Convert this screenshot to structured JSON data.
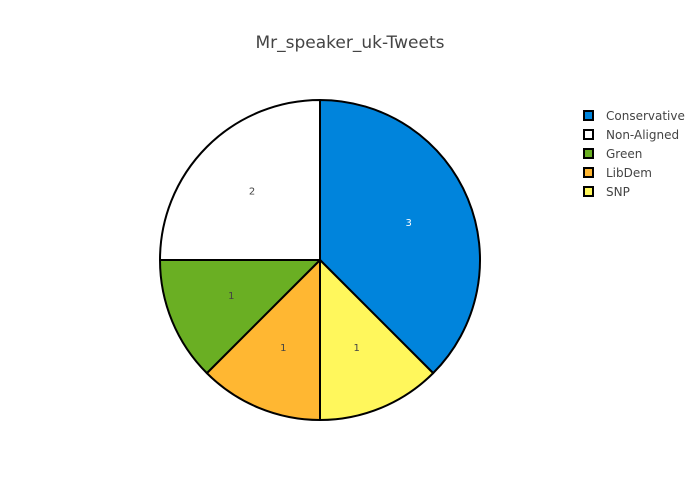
{
  "chart_data": {
    "type": "pie",
    "title": "Mr_speaker_uk-Tweets",
    "categories": [
      "Conservative",
      "SNP",
      "LibDem",
      "Green",
      "Non-Aligned"
    ],
    "values": [
      3,
      1,
      1,
      1,
      2
    ],
    "colors": [
      "#0084dc",
      "#fff75c",
      "#ffb732",
      "#6aaf23",
      "#ffffff"
    ],
    "label_colors": [
      "#ffffff",
      "#444444",
      "#444444",
      "#444444",
      "#444444"
    ],
    "direction": "clockwise",
    "start": "top",
    "legend": {
      "position": "top-right",
      "items": [
        {
          "label": "Conservative",
          "color": "#0084dc"
        },
        {
          "label": "Non-Aligned",
          "color": "#ffffff"
        },
        {
          "label": "Green",
          "color": "#6aaf23"
        },
        {
          "label": "LibDem",
          "color": "#ffb732"
        },
        {
          "label": "SNP",
          "color": "#fff75c"
        }
      ]
    }
  }
}
